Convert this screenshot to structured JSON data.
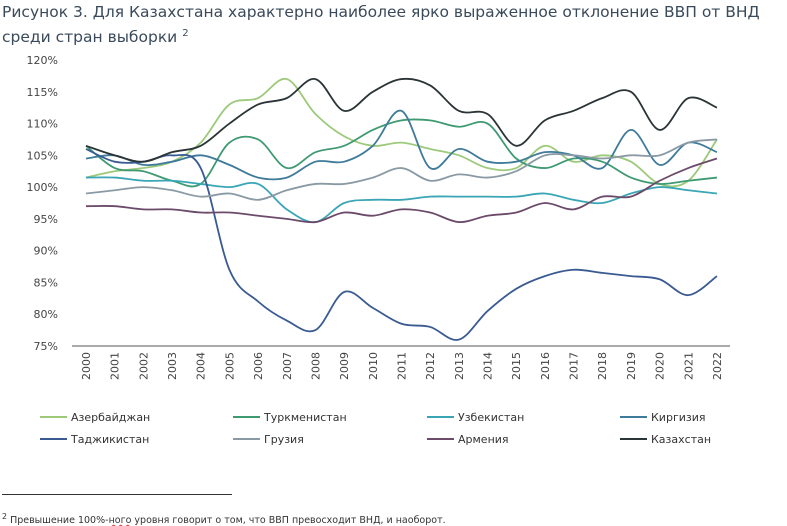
{
  "title": "Рисунок 3. Для Казахстана характерно наиболее ярко выраженное отклонение ВВП от ВНД среди стран выборки",
  "title_footnote_mark": "2",
  "footnote": {
    "mark": "2",
    "before": "Превышение 100%-",
    "underlined": "ного",
    "after": " уровня говорит о том, что ВВП превосходит ВНД, и наоборот."
  },
  "chart_data": {
    "type": "line",
    "title": "",
    "xlabel": "",
    "ylabel": "",
    "ylim": [
      75,
      120
    ],
    "yticks": [
      "75%",
      "80%",
      "85%",
      "90%",
      "95%",
      "100%",
      "105%",
      "110%",
      "115%",
      "120%"
    ],
    "grid": false,
    "legend_placement": "bottom",
    "x": [
      "2000",
      "2001",
      "2002",
      "2003",
      "2004",
      "2005",
      "2006",
      "2007",
      "2008",
      "2009",
      "2010",
      "2011",
      "2012",
      "2013",
      "2014",
      "2015",
      "2016",
      "2017",
      "2018",
      "2019",
      "2020",
      "2021",
      "2022"
    ],
    "series": [
      {
        "name": "Азербайджан",
        "color": "#9dc97a",
        "values": [
          101.5,
          102.5,
          103,
          104,
          107,
          113,
          114,
          117,
          111.5,
          108,
          106.5,
          107,
          106,
          105,
          103,
          103,
          106.5,
          104,
          105,
          104,
          100.5,
          101,
          107.5
        ]
      },
      {
        "name": "Туркменистан",
        "color": "#3f9a72",
        "values": [
          106.5,
          103,
          102.5,
          101,
          100.5,
          107,
          107.5,
          103,
          105.5,
          106.5,
          109,
          110.5,
          110.5,
          109.5,
          110,
          104.5,
          103,
          104.5,
          104,
          101.5,
          100.5,
          101,
          101.5
        ]
      },
      {
        "name": "Узбекистан",
        "color": "#3aa6b5",
        "values": [
          101.5,
          101.5,
          101,
          101,
          100.5,
          100,
          100.5,
          96.5,
          94.5,
          97.5,
          98,
          98,
          98.5,
          98.5,
          98.5,
          98.5,
          99,
          98,
          97.5,
          99,
          100,
          99.5,
          99
        ]
      },
      {
        "name": "Киргизия",
        "color": "#3e7a9a",
        "values": [
          104.5,
          105,
          103.5,
          104,
          105,
          103.5,
          101.5,
          101.5,
          104,
          104,
          106.5,
          112,
          103,
          106,
          104,
          104,
          105.5,
          105,
          103,
          109,
          103.5,
          107,
          105.5
        ]
      },
      {
        "name": "Таджикистан",
        "color": "#3a5a92",
        "values": [
          106,
          104,
          104,
          105,
          103,
          87,
          82,
          79,
          77.5,
          83.5,
          81,
          78.5,
          78,
          76,
          80.5,
          84,
          86,
          87,
          86.5,
          86,
          85.5,
          83,
          86
        ]
      },
      {
        "name": "Грузия",
        "color": "#8a9aa5",
        "values": [
          99,
          99.5,
          100,
          99.5,
          98.5,
          99,
          98,
          99.5,
          100.5,
          100.5,
          101.5,
          103,
          101,
          102,
          101.5,
          102.5,
          105,
          105,
          104.5,
          105,
          105,
          107,
          107.5
        ]
      },
      {
        "name": "Армения",
        "color": "#6b4a6a",
        "values": [
          97,
          97,
          96.5,
          96.5,
          96,
          96,
          95.5,
          95,
          94.5,
          96,
          95.5,
          96.5,
          96,
          94.5,
          95.5,
          96,
          97.5,
          96.5,
          98.5,
          98.5,
          101,
          103,
          104.5
        ]
      },
      {
        "name": "Казахстан",
        "color": "#2b3436",
        "values": [
          106.5,
          105,
          104,
          105.5,
          106.5,
          110,
          113,
          114,
          117,
          112,
          115,
          117,
          116,
          112,
          111.5,
          106.5,
          110.5,
          112,
          114,
          115,
          109,
          114,
          112.5
        ]
      }
    ]
  }
}
